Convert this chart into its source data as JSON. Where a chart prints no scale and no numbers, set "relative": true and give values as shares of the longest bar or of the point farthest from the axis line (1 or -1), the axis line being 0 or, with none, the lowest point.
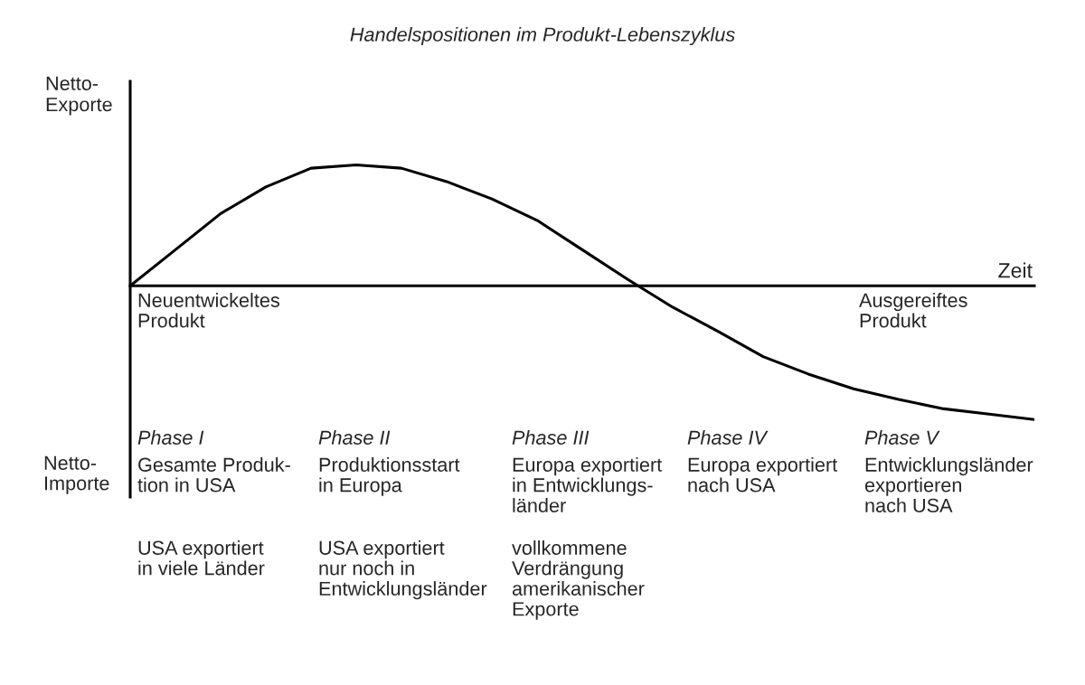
{
  "chart_data": {
    "type": "line",
    "title": "Handelspositionen im Produkt-Lebenszyklus",
    "ylabel": "Netto-\nExporte",
    "xlabel": "Zeit",
    "relative": true,
    "categories": [
      null,
      null,
      null,
      null,
      null,
      null,
      null,
      null,
      null,
      null,
      null,
      null,
      null,
      null,
      null,
      null,
      null,
      null,
      null,
      null,
      null
    ],
    "series": [
      {
        "color": "#000000",
        "values": [
          0,
          0.27,
          0.54,
          0.74,
          0.88,
          0.905,
          0.88,
          0.78,
          0.65,
          0.49,
          0.27,
          0.05,
          -0.16,
          -0.34,
          -0.53,
          -0.66,
          -0.77,
          -0.85,
          -0.92,
          -0.96,
          -1
        ]
      }
    ],
    "grid": false,
    "marker": "none",
    "line_style": "solid",
    "annotations": [
      "Neuentwickeltes\nProdukt",
      "Ausgereiftes\nProdukt",
      "Netto-\nImporte",
      "Phase I",
      "Gesamte Produk-\ntion in USA",
      "USA exportiert\nin viele Länder",
      "Phase II",
      "Produktionsstart\nin Europa",
      "USA exportiert\nnur noch in\nEntwicklungsländer",
      "Phase III",
      "Europa exportiert\nin Entwicklungs-\nländer",
      "vollkommene\nVerdrängung\namerikanischer\nExporte",
      "Phase IV",
      "Europa exportiert\nnach USA",
      "Phase V",
      "Entwicklungsländer\nexportieren\nnach USA"
    ]
  }
}
